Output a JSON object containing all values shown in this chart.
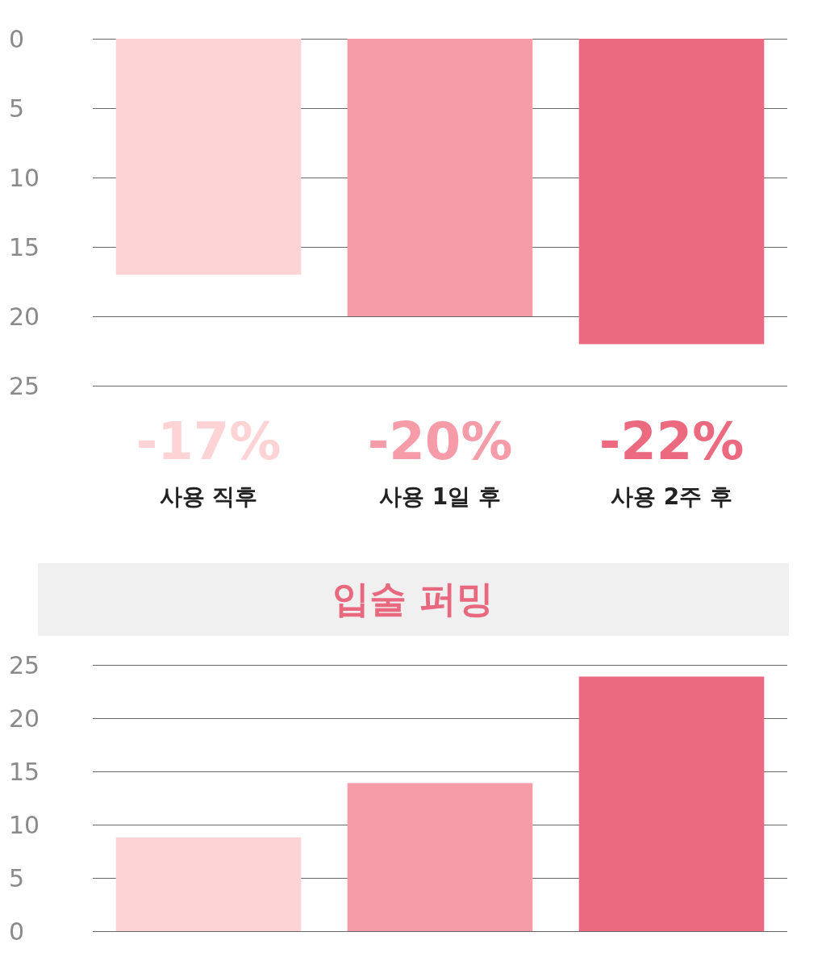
{
  "chart_data": [
    {
      "type": "bar",
      "categories": [
        "사용 직후",
        "사용 1일 후",
        "사용 2주 후"
      ],
      "values": [
        -17,
        -20,
        -22
      ],
      "colors": [
        "#fdd3d5",
        "#f59ca8",
        "#ec6a7f"
      ],
      "value_labels": [
        "-17%",
        "-20%",
        "-22%"
      ],
      "ylim": [
        -25,
        0
      ],
      "yticks": [
        {
          "value": 0,
          "label": "0"
        },
        {
          "value": -5,
          "label": "5"
        },
        {
          "value": -10,
          "label": "10"
        },
        {
          "value": -15,
          "label": "15"
        },
        {
          "value": -20,
          "label": "20"
        },
        {
          "value": -25,
          "label": "25"
        }
      ],
      "grid": "y"
    },
    {
      "type": "bar",
      "title": "입술 퍼밍",
      "categories": [
        null,
        null,
        null
      ],
      "values": [
        8.8,
        13.9,
        23.9
      ],
      "colors": [
        "#fdd3d5",
        "#f59ca8",
        "#ec6a7f"
      ],
      "ylim": [
        0,
        25
      ],
      "yticks": [
        0,
        5,
        10,
        15,
        20,
        25
      ],
      "grid": "y"
    }
  ]
}
